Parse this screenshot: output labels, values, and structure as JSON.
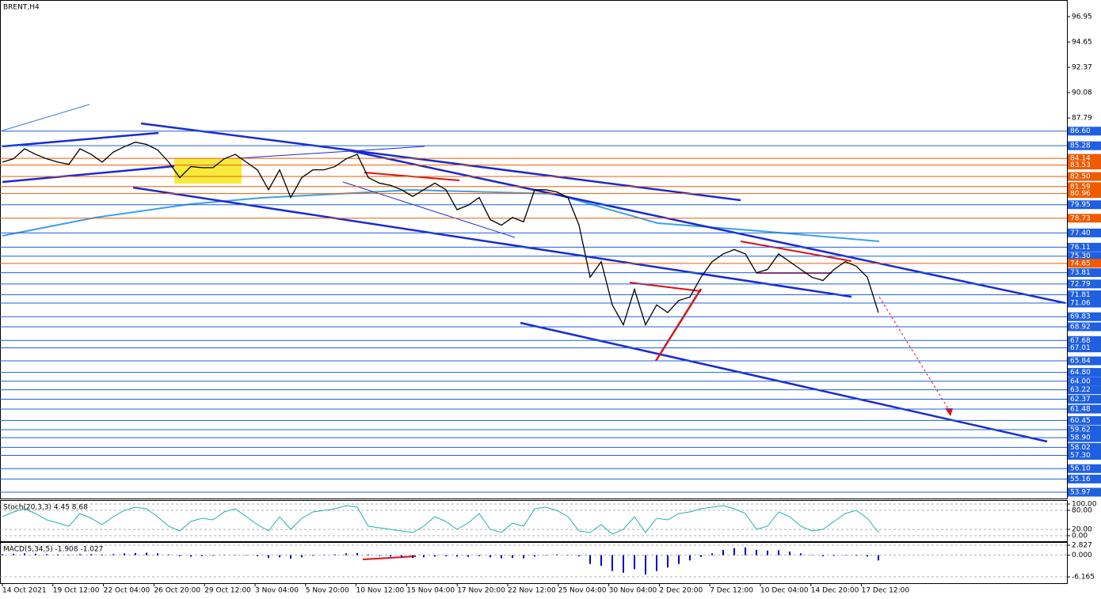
{
  "chart_data": [
    {
      "type": "line",
      "title": "BRENT,H4",
      "color": "#000000",
      "values": [
        83.8,
        84.1,
        85.0,
        84.5,
        84.1,
        83.8,
        83.6,
        85.0,
        84.5,
        83.8,
        84.7,
        85.2,
        85.6,
        85.4,
        84.9,
        83.8,
        82.4,
        83.4,
        83.3,
        83.3,
        84.1,
        84.5,
        83.8,
        83.1,
        81.3,
        83.1,
        80.6,
        82.4,
        83.1,
        83.1,
        83.4,
        84.1,
        84.5,
        82.4,
        81.9,
        81.7,
        81.3,
        80.7,
        81.3,
        81.9,
        81.3,
        79.5,
        79.9,
        80.6,
        78.6,
        78.1,
        78.8,
        78.4,
        81.3,
        81.3,
        81.1,
        80.6,
        78.1,
        73.4,
        74.8,
        70.9,
        69.1,
        72.3,
        69.1,
        70.9,
        70.2,
        71.3,
        71.6,
        73.4,
        74.8,
        75.5,
        75.9,
        75.5,
        73.8,
        74.1,
        75.5,
        74.8,
        74.1,
        73.4,
        73.1,
        74.1,
        74.8,
        74.4,
        73.4,
        70.2
      ],
      "ylim": [
        53.4,
        98.45
      ],
      "yticks": [
        96.95,
        94.65,
        92.37,
        90.08,
        87.79
      ],
      "levels": [
        {
          "value": 86.6,
          "label": "86.60",
          "color": "#1f5fe0"
        },
        {
          "value": 85.28,
          "color": "#1f5fe0"
        },
        {
          "value": 84.14,
          "color": "#f05a00"
        },
        {
          "value": 83.53,
          "color": "#f05a00"
        },
        {
          "value": 82.5,
          "label": "82.50",
          "color": "#f05a00"
        },
        {
          "value": 81.59,
          "color": "#f05a00"
        },
        {
          "value": 80.96,
          "color": "#f05a00"
        },
        {
          "value": 79.95,
          "color": "#1f5fe0"
        },
        {
          "value": 78.73,
          "color": "#f05a00"
        },
        {
          "value": 77.4,
          "label": "77.40",
          "color": "#1f5fe0"
        },
        {
          "value": 76.11,
          "color": "#1f5fe0"
        },
        {
          "value": 75.3,
          "label": "75.30",
          "color": "#1f5fe0"
        },
        {
          "value": 74.65,
          "color": "#f05a00"
        },
        {
          "value": 73.81,
          "color": "#1f5fe0"
        },
        {
          "value": 72.79,
          "color": "#1f5fe0"
        },
        {
          "value": 71.81,
          "color": "#1f5fe0"
        },
        {
          "value": 71.06,
          "color": "#1f5fe0"
        },
        {
          "value": 69.83,
          "color": "#1f5fe0"
        },
        {
          "value": 68.92,
          "color": "#1f5fe0"
        },
        {
          "value": 67.68,
          "color": "#1f5fe0"
        },
        {
          "value": 67.01,
          "color": "#1f5fe0"
        },
        {
          "value": 65.84,
          "color": "#1f5fe0"
        },
        {
          "value": 64.8,
          "label": "64.80",
          "color": "#1f5fe0"
        },
        {
          "value": 64,
          "label": "64.00",
          "color": "#1f5fe0"
        },
        {
          "value": 63.22,
          "color": "#1f5fe0"
        },
        {
          "value": 62.37,
          "color": "#1f5fe0"
        },
        {
          "value": 61.48,
          "color": "#1f5fe0"
        },
        {
          "value": 60.45,
          "color": "#1f5fe0"
        },
        {
          "value": 59.62,
          "color": "#1f5fe0"
        },
        {
          "value": 58.9,
          "label": "58.90",
          "color": "#1f5fe0"
        },
        {
          "value": 58.02,
          "color": "#1f5fe0"
        },
        {
          "value": 57.3,
          "label": "57.30",
          "color": "#1f5fe0"
        },
        {
          "value": 56.1,
          "label": "56.10",
          "color": "#1f5fe0"
        },
        {
          "value": 55.16,
          "color": "#1f5fe0"
        },
        {
          "value": 53.97,
          "color": "#1f5fe0"
        }
      ],
      "xtick_labels": [
        "14 Oct 2021",
        "19 Oct 12:00",
        "22 Oct 04:00",
        "26 Oct 20:00",
        "29 Oct 12:00",
        "3 Nov 04:00",
        "5 Nov 20:00",
        "10 Nov 12:00",
        "15 Nov 04:00",
        "17 Nov 20:00",
        "22 Nov 12:00",
        "25 Nov 04:00",
        "30 Nov 04:00",
        "2 Dec 20:00",
        "7 Dec 12:00",
        "10 Dec 04:00",
        "14 Dec 20:00",
        "17 Dec 12:00"
      ]
    },
    {
      "type": "line",
      "title": "Stoch(20,3,3) 4.45 8.68",
      "color": "#20b2aa",
      "grid": true,
      "values": [
        60,
        75,
        85,
        70,
        50,
        40,
        30,
        70,
        55,
        35,
        60,
        80,
        90,
        85,
        60,
        30,
        15,
        45,
        55,
        50,
        75,
        85,
        60,
        35,
        15,
        60,
        20,
        55,
        75,
        80,
        85,
        95,
        90,
        30,
        25,
        20,
        15,
        10,
        30,
        60,
        45,
        20,
        40,
        70,
        20,
        10,
        40,
        30,
        85,
        90,
        80,
        60,
        15,
        10,
        35,
        5,
        20,
        60,
        10,
        55,
        50,
        70,
        75,
        85,
        90,
        95,
        85,
        70,
        20,
        30,
        75,
        60,
        30,
        15,
        20,
        45,
        70,
        80,
        55,
        10
      ],
      "ylim": [
        -17.5,
        112.5
      ],
      "yticks": [
        {
          "value": 100,
          "label": "100.00"
        },
        {
          "value": 80,
          "label": "80.00"
        },
        {
          "value": 20,
          "label": "20.00"
        },
        {
          "value": 0,
          "label": "0.00"
        }
      ]
    },
    {
      "type": "bar",
      "title": "MACD(5,34,5) -1.908 -1.027",
      "color": "#0000cd",
      "grid": true,
      "values": [
        0.3,
        0.4,
        0.5,
        0.4,
        0.3,
        0.2,
        0.1,
        0.3,
        0.3,
        0.2,
        0.3,
        0.5,
        0.6,
        0.7,
        0.5,
        0.2,
        -0.3,
        -0.4,
        -0.3,
        -0.2,
        -0.1,
        0.1,
        0.0,
        -0.3,
        -0.8,
        -0.6,
        -1.0,
        -0.6,
        -0.2,
        0.1,
        0.2,
        0.5,
        0.6,
        0.2,
        -0.2,
        -0.4,
        -0.6,
        -0.8,
        -0.6,
        -0.4,
        -0.3,
        -0.4,
        -0.5,
        -0.3,
        -0.6,
        -0.9,
        -0.8,
        -0.9,
        -0.4,
        0.0,
        0.2,
        0.1,
        -0.3,
        -2.5,
        -3.0,
        -4.5,
        -5.0,
        -4.0,
        -5.5,
        -4.5,
        -3.5,
        -2.5,
        -1.5,
        -0.5,
        0.5,
        1.5,
        2.0,
        2.2,
        1.5,
        1.3,
        1.4,
        1.0,
        0.5,
        0.0,
        -0.3,
        -0.2,
        -0.1,
        -0.2,
        -0.4,
        -1.5
      ],
      "ylim": [
        -7.96,
        3.73
      ],
      "yticks": [
        2.827,
        {
          "value": 0,
          "label": "0.000"
        },
        -6.165
      ]
    }
  ]
}
